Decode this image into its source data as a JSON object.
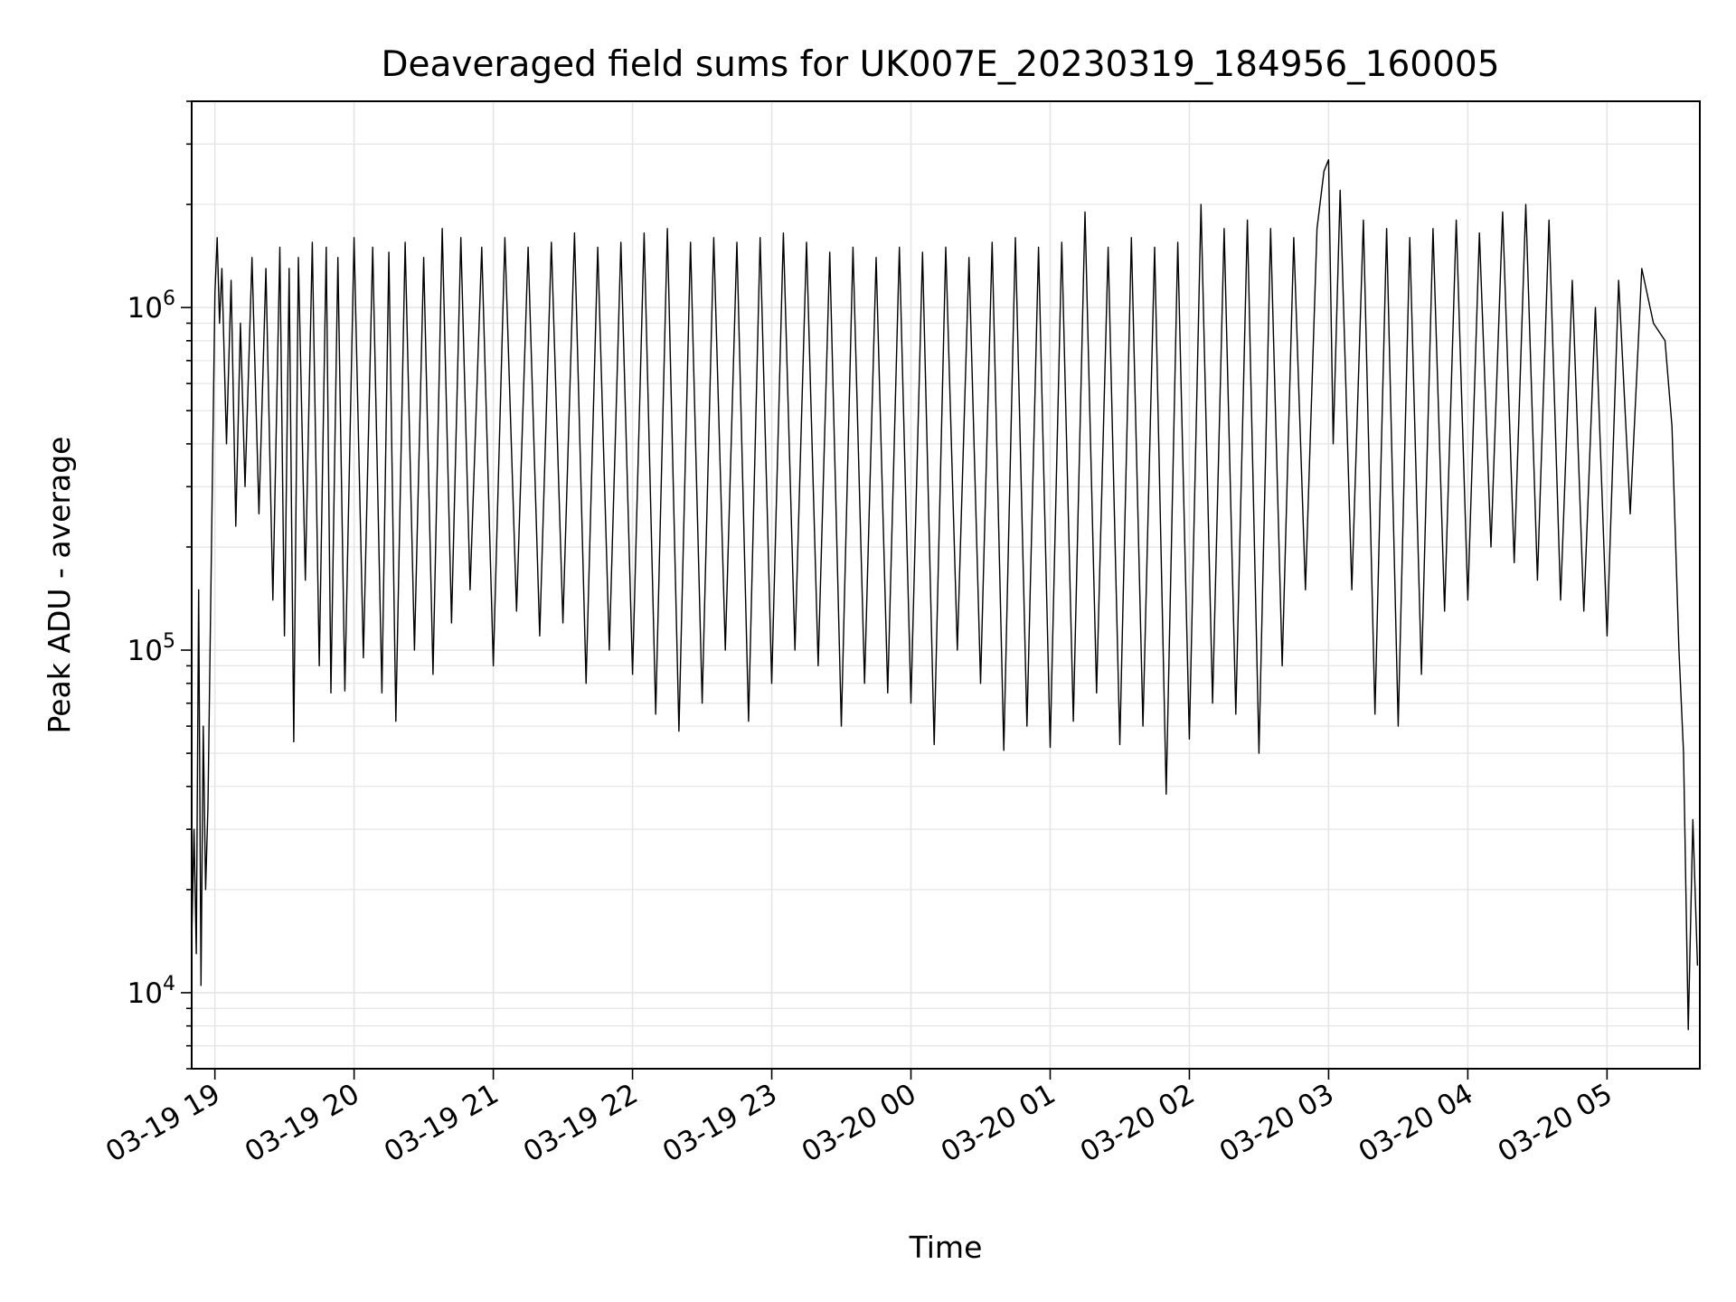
{
  "chart_data": {
    "type": "line",
    "title": "Deaveraged field sums for UK007E_20230319_184956_160005",
    "xlabel": "Time",
    "ylabel": "Peak ADU - average",
    "yscale": "log",
    "ylim": [
      6000,
      4000000
    ],
    "xlim": [
      "03-19 18:50",
      "03-20 05:40"
    ],
    "grid": true,
    "line_color": "#000000",
    "grid_color": "#e5e5e5",
    "x_ticks": [
      {
        "t": "03-19 19:00",
        "label": "03-19 19"
      },
      {
        "t": "03-19 20:00",
        "label": "03-19 20"
      },
      {
        "t": "03-19 21:00",
        "label": "03-19 21"
      },
      {
        "t": "03-19 22:00",
        "label": "03-19 22"
      },
      {
        "t": "03-19 23:00",
        "label": "03-19 23"
      },
      {
        "t": "03-20 00:00",
        "label": "03-20 00"
      },
      {
        "t": "03-20 01:00",
        "label": "03-20 01"
      },
      {
        "t": "03-20 02:00",
        "label": "03-20 02"
      },
      {
        "t": "03-20 03:00",
        "label": "03-20 03"
      },
      {
        "t": "03-20 04:00",
        "label": "03-20 04"
      },
      {
        "t": "03-20 05:00",
        "label": "03-20 05"
      }
    ],
    "y_ticks": [
      {
        "value": 10000,
        "base": "10",
        "exp": "4"
      },
      {
        "value": 100000,
        "base": "10",
        "exp": "5"
      },
      {
        "value": 1000000,
        "base": "10",
        "exp": "6"
      }
    ],
    "series_points": [
      [
        "03-19 18:50",
        14000
      ],
      [
        "03-19 18:51",
        30000
      ],
      [
        "03-19 18:52",
        13000
      ],
      [
        "03-19 18:53",
        150000
      ],
      [
        "03-19 18:54",
        10500
      ],
      [
        "03-19 18:55",
        60000
      ],
      [
        "03-19 18:56",
        20000
      ],
      [
        "03-19 18:57",
        35000
      ],
      [
        "03-19 19:00",
        1100000
      ],
      [
        "03-19 19:01",
        1600000
      ],
      [
        "03-19 19:02",
        900000
      ],
      [
        "03-19 19:03",
        1300000
      ],
      [
        "03-19 19:05",
        400000
      ],
      [
        "03-19 19:07",
        1200000
      ],
      [
        "03-19 19:09",
        230000
      ],
      [
        "03-19 19:11",
        900000
      ],
      [
        "03-19 19:13",
        300000
      ],
      [
        "03-19 19:16",
        1400000
      ],
      [
        "03-19 19:19",
        250000
      ],
      [
        "03-19 19:22",
        1300000
      ],
      [
        "03-19 19:25",
        140000
      ],
      [
        "03-19 19:28",
        1500000
      ],
      [
        "03-19 19:30",
        110000
      ],
      [
        "03-19 19:32",
        1300000
      ],
      [
        "03-19 19:34",
        54000
      ],
      [
        "03-19 19:36",
        1400000
      ],
      [
        "03-19 19:39",
        160000
      ],
      [
        "03-19 19:42",
        1550000
      ],
      [
        "03-19 19:45",
        90000
      ],
      [
        "03-19 19:48",
        1500000
      ],
      [
        "03-19 19:50",
        75000
      ],
      [
        "03-19 19:53",
        1400000
      ],
      [
        "03-19 19:56",
        76000
      ],
      [
        "03-19 20:00",
        1600000
      ],
      [
        "03-19 20:04",
        95000
      ],
      [
        "03-19 20:08",
        1500000
      ],
      [
        "03-19 20:12",
        75000
      ],
      [
        "03-19 20:15",
        1450000
      ],
      [
        "03-19 20:18",
        62000
      ],
      [
        "03-19 20:22",
        1550000
      ],
      [
        "03-19 20:26",
        100000
      ],
      [
        "03-19 20:30",
        1400000
      ],
      [
        "03-19 20:34",
        85000
      ],
      [
        "03-19 20:38",
        1700000
      ],
      [
        "03-19 20:42",
        120000
      ],
      [
        "03-19 20:46",
        1600000
      ],
      [
        "03-19 20:50",
        150000
      ],
      [
        "03-19 20:55",
        1500000
      ],
      [
        "03-19 21:00",
        90000
      ],
      [
        "03-19 21:05",
        1600000
      ],
      [
        "03-19 21:10",
        130000
      ],
      [
        "03-19 21:15",
        1500000
      ],
      [
        "03-19 21:20",
        110000
      ],
      [
        "03-19 21:25",
        1550000
      ],
      [
        "03-19 21:30",
        120000
      ],
      [
        "03-19 21:35",
        1650000
      ],
      [
        "03-19 21:40",
        80000
      ],
      [
        "03-19 21:45",
        1500000
      ],
      [
        "03-19 21:50",
        100000
      ],
      [
        "03-19 21:55",
        1550000
      ],
      [
        "03-19 22:00",
        85000
      ],
      [
        "03-19 22:05",
        1650000
      ],
      [
        "03-19 22:10",
        65000
      ],
      [
        "03-19 22:15",
        1700000
      ],
      [
        "03-19 22:20",
        58000
      ],
      [
        "03-19 22:25",
        1550000
      ],
      [
        "03-19 22:30",
        70000
      ],
      [
        "03-19 22:35",
        1600000
      ],
      [
        "03-19 22:40",
        100000
      ],
      [
        "03-19 22:45",
        1550000
      ],
      [
        "03-19 22:50",
        62000
      ],
      [
        "03-19 22:55",
        1600000
      ],
      [
        "03-19 23:00",
        80000
      ],
      [
        "03-19 23:05",
        1650000
      ],
      [
        "03-19 23:10",
        100000
      ],
      [
        "03-19 23:15",
        1550000
      ],
      [
        "03-19 23:20",
        90000
      ],
      [
        "03-19 23:25",
        1450000
      ],
      [
        "03-19 23:30",
        60000
      ],
      [
        "03-19 23:35",
        1500000
      ],
      [
        "03-19 23:40",
        80000
      ],
      [
        "03-19 23:45",
        1400000
      ],
      [
        "03-19 23:50",
        75000
      ],
      [
        "03-19 23:55",
        1500000
      ],
      [
        "03-20 00:00",
        70000
      ],
      [
        "03-20 00:05",
        1450000
      ],
      [
        "03-20 00:10",
        53000
      ],
      [
        "03-20 00:15",
        1500000
      ],
      [
        "03-20 00:20",
        100000
      ],
      [
        "03-20 00:25",
        1400000
      ],
      [
        "03-20 00:30",
        80000
      ],
      [
        "03-20 00:35",
        1550000
      ],
      [
        "03-20 00:40",
        51000
      ],
      [
        "03-20 00:45",
        1600000
      ],
      [
        "03-20 00:50",
        60000
      ],
      [
        "03-20 00:55",
        1500000
      ],
      [
        "03-20 01:00",
        52000
      ],
      [
        "03-20 01:05",
        1550000
      ],
      [
        "03-20 01:10",
        62000
      ],
      [
        "03-20 01:15",
        1900000
      ],
      [
        "03-20 01:20",
        75000
      ],
      [
        "03-20 01:25",
        1500000
      ],
      [
        "03-20 01:30",
        53000
      ],
      [
        "03-20 01:35",
        1600000
      ],
      [
        "03-20 01:40",
        60000
      ],
      [
        "03-20 01:45",
        1500000
      ],
      [
        "03-20 01:50",
        38000
      ],
      [
        "03-20 01:55",
        1550000
      ],
      [
        "03-20 02:00",
        55000
      ],
      [
        "03-20 02:05",
        2000000
      ],
      [
        "03-20 02:10",
        70000
      ],
      [
        "03-20 02:15",
        1700000
      ],
      [
        "03-20 02:20",
        65000
      ],
      [
        "03-20 02:25",
        1800000
      ],
      [
        "03-20 02:30",
        50000
      ],
      [
        "03-20 02:35",
        1700000
      ],
      [
        "03-20 02:40",
        90000
      ],
      [
        "03-20 02:45",
        1600000
      ],
      [
        "03-20 02:50",
        150000
      ],
      [
        "03-20 02:55",
        1700000
      ],
      [
        "03-20 02:58",
        2500000
      ],
      [
        "03-20 03:00",
        2700000
      ],
      [
        "03-20 03:02",
        400000
      ],
      [
        "03-20 03:05",
        2200000
      ],
      [
        "03-20 03:10",
        150000
      ],
      [
        "03-20 03:15",
        1800000
      ],
      [
        "03-20 03:20",
        65000
      ],
      [
        "03-20 03:25",
        1700000
      ],
      [
        "03-20 03:30",
        60000
      ],
      [
        "03-20 03:35",
        1600000
      ],
      [
        "03-20 03:40",
        85000
      ],
      [
        "03-20 03:45",
        1700000
      ],
      [
        "03-20 03:50",
        130000
      ],
      [
        "03-20 03:55",
        1800000
      ],
      [
        "03-20 04:00",
        140000
      ],
      [
        "03-20 04:05",
        1650000
      ],
      [
        "03-20 04:10",
        200000
      ],
      [
        "03-20 04:15",
        1900000
      ],
      [
        "03-20 04:20",
        180000
      ],
      [
        "03-20 04:25",
        2000000
      ],
      [
        "03-20 04:30",
        160000
      ],
      [
        "03-20 04:35",
        1800000
      ],
      [
        "03-20 04:40",
        140000
      ],
      [
        "03-20 04:45",
        1200000
      ],
      [
        "03-20 04:50",
        130000
      ],
      [
        "03-20 04:55",
        1000000
      ],
      [
        "03-20 05:00",
        110000
      ],
      [
        "03-20 05:05",
        1200000
      ],
      [
        "03-20 05:10",
        250000
      ],
      [
        "03-20 05:15",
        1300000
      ],
      [
        "03-20 05:20",
        900000
      ],
      [
        "03-20 05:25",
        800000
      ],
      [
        "03-20 05:28",
        450000
      ],
      [
        "03-20 05:31",
        100000
      ],
      [
        "03-20 05:33",
        50000
      ],
      [
        "03-20 05:35",
        7800
      ],
      [
        "03-20 05:37",
        32000
      ],
      [
        "03-20 05:39",
        12000
      ]
    ]
  }
}
